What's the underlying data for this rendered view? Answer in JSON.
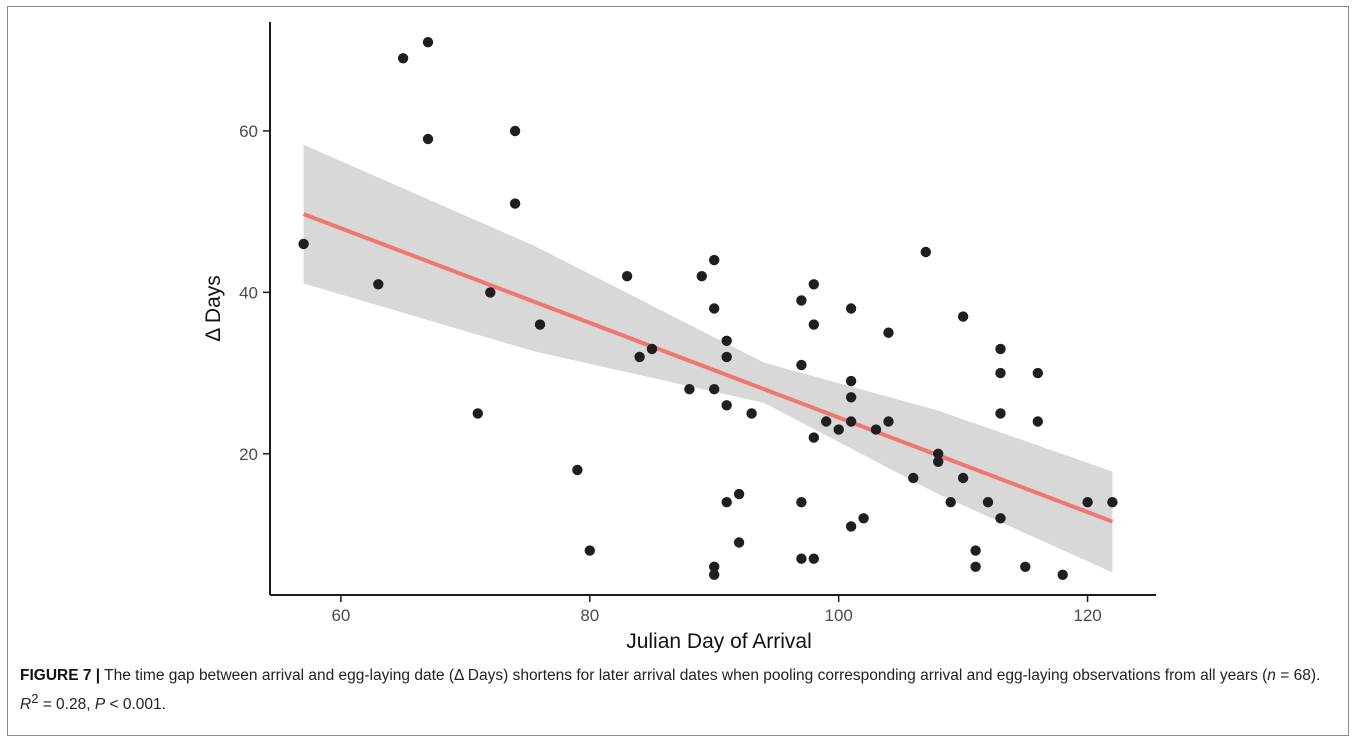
{
  "chart_data": {
    "type": "scatter",
    "xlabel": "Julian Day of Arrival",
    "ylabel": "Δ Days",
    "xlim": [
      54.3,
      125.5
    ],
    "ylim": [
      2.5,
      73.5
    ],
    "xticks": [
      60,
      80,
      100,
      120
    ],
    "yticks": [
      20,
      40,
      60
    ],
    "grid": false,
    "points": [
      [
        57,
        46
      ],
      [
        63,
        41
      ],
      [
        65,
        69
      ],
      [
        67,
        71
      ],
      [
        67,
        59
      ],
      [
        71,
        25
      ],
      [
        72,
        40
      ],
      [
        74,
        60
      ],
      [
        74,
        51
      ],
      [
        76,
        36
      ],
      [
        79,
        18
      ],
      [
        80,
        8
      ],
      [
        83,
        42
      ],
      [
        84,
        32
      ],
      [
        85,
        33
      ],
      [
        88,
        28
      ],
      [
        89,
        42
      ],
      [
        90,
        44
      ],
      [
        90,
        38
      ],
      [
        90,
        28
      ],
      [
        90,
        6
      ],
      [
        90,
        5
      ],
      [
        91,
        34
      ],
      [
        91,
        32
      ],
      [
        91,
        26
      ],
      [
        91,
        14
      ],
      [
        92,
        15
      ],
      [
        92,
        9
      ],
      [
        93,
        25
      ],
      [
        97,
        39
      ],
      [
        97,
        31
      ],
      [
        97,
        14
      ],
      [
        97,
        7
      ],
      [
        98,
        41
      ],
      [
        98,
        36
      ],
      [
        98,
        22
      ],
      [
        98,
        7
      ],
      [
        99,
        24
      ],
      [
        100,
        23
      ],
      [
        101,
        38
      ],
      [
        101,
        29
      ],
      [
        101,
        27
      ],
      [
        101,
        24
      ],
      [
        101,
        11
      ],
      [
        102,
        12
      ],
      [
        103,
        23
      ],
      [
        104,
        35
      ],
      [
        104,
        24
      ],
      [
        106,
        17
      ],
      [
        107,
        45
      ],
      [
        108,
        20
      ],
      [
        108,
        19
      ],
      [
        109,
        14
      ],
      [
        110,
        37
      ],
      [
        110,
        17
      ],
      [
        111,
        8
      ],
      [
        111,
        6
      ],
      [
        112,
        14
      ],
      [
        113,
        33
      ],
      [
        113,
        30
      ],
      [
        113,
        25
      ],
      [
        113,
        12
      ],
      [
        115,
        6
      ],
      [
        116,
        30
      ],
      [
        116,
        24
      ],
      [
        118,
        5
      ],
      [
        120,
        14
      ],
      [
        122,
        14
      ]
    ],
    "fit": {
      "x": [
        57,
        122
      ],
      "y": [
        49.7,
        11.6
      ],
      "ci_lower": [
        41.1,
        5.3
      ],
      "ci_upper": [
        58.3,
        17.8
      ],
      "ci_center_x": 94,
      "ci_center_lower": 26.3,
      "ci_center_upper": 31.3
    },
    "colors": {
      "points": "#1f1f1f",
      "fit_line": "#f0776f",
      "confidence_band": "#d6d6d6",
      "axis": "#1a1a1a"
    }
  },
  "caption": {
    "label": "FIGURE 7 |",
    "text_part1": " The time gap between arrival and egg-laying date (Δ Days) shortens for later arrival dates when pooling corresponding arrival and egg-laying observations from all years (",
    "n_var": "n",
    "n_value": " = 68). ",
    "r_var": "R",
    "r_sup": "2",
    "r_value": " = 0.28, ",
    "p_var": "P",
    "p_value": " < 0.001."
  }
}
